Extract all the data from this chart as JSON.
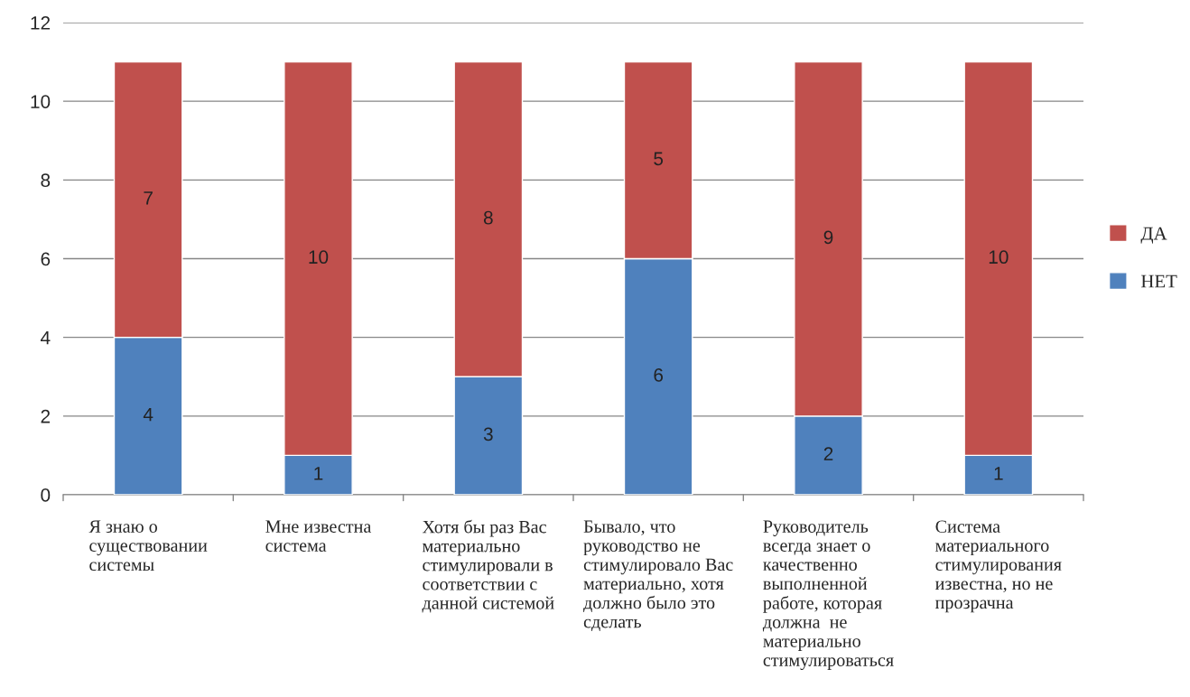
{
  "chart_data": {
    "type": "bar",
    "stacked": true,
    "categories": [
      "Я знаю о\nсуществовании\nсистемы",
      "Мне известна\nсистема",
      "Хотя бы раз Вас\nматериально\nстимулировали в\nсоответствии с\nданной системой",
      "Бывало, что\nруководство не\nстимулировало Вас\nматериально, хотя\nдолжно было это\nсделать",
      "Руководитель\nвсегда знает о\nкачественно\nвыполненной\nработе, которая\nдолжна  не\nматериально\nстимулироваться",
      "Система\nматериального\nстимулирования\nизвестна, но не\nпрозрачна"
    ],
    "series": [
      {
        "name": "НЕТ",
        "color": "#4f81bd",
        "values": [
          4,
          1,
          3,
          6,
          2,
          1
        ]
      },
      {
        "name": "ДА",
        "color": "#c0504d",
        "values": [
          7,
          10,
          8,
          5,
          9,
          10
        ]
      }
    ],
    "ylim": [
      0,
      12
    ],
    "yticks": [
      0,
      2,
      4,
      6,
      8,
      10,
      12
    ],
    "grid": "y",
    "legend": "right",
    "data_labels": true
  }
}
